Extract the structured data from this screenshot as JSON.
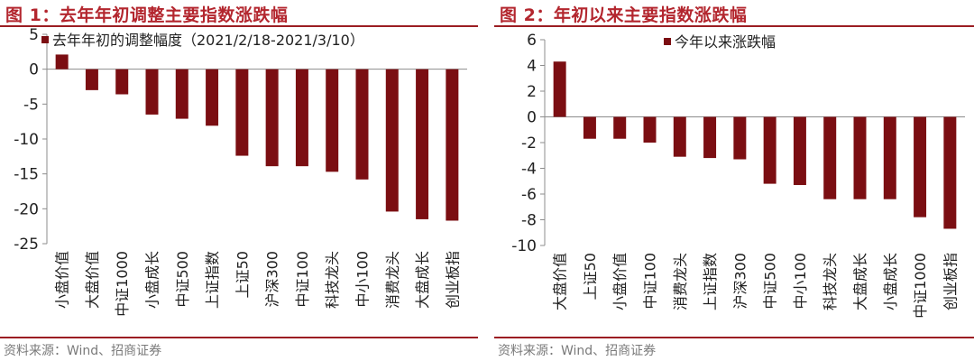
{
  "figures": [
    {
      "title": "图 1：去年年初调整主要指数涨跌幅",
      "source": "资料来源：Wind、招商证券",
      "colors": {
        "bar": "#7b0e12",
        "title": "#b3262e",
        "rule": "#9b1d22"
      },
      "chart_data": {
        "type": "bar",
        "categories": [
          "小盘价值",
          "大盘价值",
          "中证1000",
          "小盘成长",
          "中证500",
          "上证指数",
          "上证50",
          "沪深300",
          "中证100",
          "科技龙头",
          "中小100",
          "消费龙头",
          "大盘成长",
          "创业板指"
        ],
        "series": [
          {
            "name": "去年年初的调整幅度（2021/2/18-2021/3/10）",
            "values": [
              2.1,
              -3.0,
              -3.6,
              -6.5,
              -7.1,
              -8.1,
              -12.4,
              -13.9,
              -13.9,
              -14.7,
              -15.8,
              -20.4,
              -21.5,
              -21.7
            ]
          }
        ],
        "ylim": [
          -25,
          5
        ],
        "yticks": [
          5,
          0,
          -5,
          -10,
          -15,
          -20,
          -25
        ],
        "legend": "top-left",
        "grid": false,
        "xlabel": "",
        "ylabel": ""
      }
    },
    {
      "title": "图 2：年初以来主要指数涨跌幅",
      "source": "资料来源：Wind、招商证券",
      "colors": {
        "bar": "#7b0e12",
        "title": "#b3262e",
        "rule": "#9b1d22"
      },
      "chart_data": {
        "type": "bar",
        "categories": [
          "大盘价值",
          "上证50",
          "小盘价值",
          "中证100",
          "消费龙头",
          "上证指数",
          "沪深300",
          "中证500",
          "中小100",
          "科技龙头",
          "大盘成长",
          "小盘成长",
          "中证1000",
          "创业板指"
        ],
        "series": [
          {
            "name": "今年以来涨跌幅",
            "values": [
              4.3,
              -1.7,
              -1.7,
              -2.0,
              -3.1,
              -3.2,
              -3.3,
              -5.2,
              -5.3,
              -6.4,
              -6.4,
              -6.4,
              -7.8,
              -8.7
            ]
          }
        ],
        "ylim": [
          -10,
          6
        ],
        "yticks": [
          6,
          4,
          2,
          0,
          -2,
          -4,
          -6,
          -8,
          -10
        ],
        "legend": "top-center",
        "grid": false,
        "xlabel": "",
        "ylabel": ""
      }
    }
  ]
}
